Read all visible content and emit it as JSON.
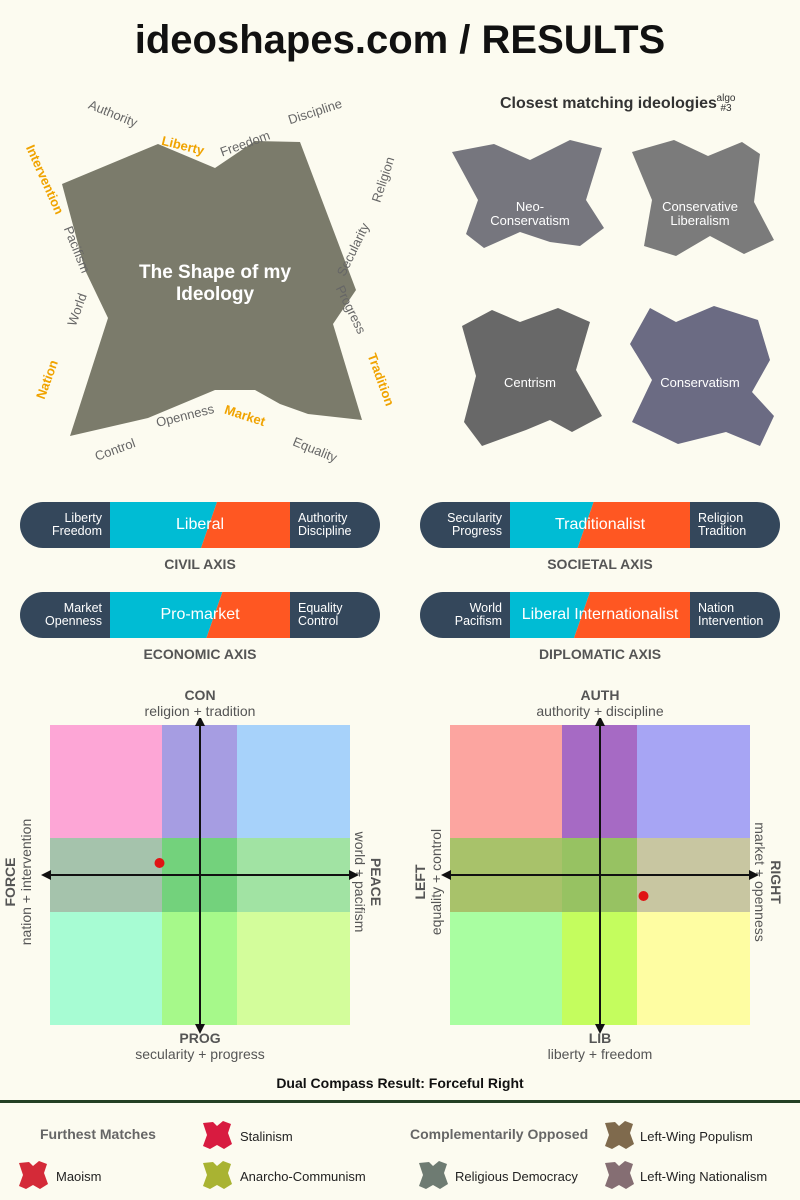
{
  "title": "ideoshapes.com / RESULTS",
  "shape": {
    "title_line1": "The Shape of my",
    "title_line2": "Ideology",
    "labels": {
      "authority": "Authority",
      "liberty": "Liberty",
      "freedom": "Freedom",
      "discipline": "Discipline",
      "intervention": "Intervention",
      "religion": "Religion",
      "pacifism": "Pacifism",
      "secularity": "Secularity",
      "world": "World",
      "progress": "Progress",
      "nation": "Nation",
      "tradition": "Tradition",
      "openness": "Openness",
      "market": "Market",
      "control": "Control",
      "equality": "Equality"
    },
    "colors": {
      "shape": "#7b7b6b",
      "highlight": "#f0a300"
    }
  },
  "closest": {
    "heading": "Closest matching ideologies",
    "algo_line1": "algo",
    "algo_line2": "#3",
    "items": [
      {
        "line1": "Neo-",
        "line2": "Conservatism",
        "color": "#76767e"
      },
      {
        "line1": "Conservative",
        "line2": "Liberalism",
        "color": "#7b7b7b"
      },
      {
        "line1": "Centrism",
        "line2": "",
        "color": "#686868"
      },
      {
        "line1": "Conservatism",
        "line2": "",
        "color": "#6b6b83"
      }
    ]
  },
  "axes": {
    "colors": {
      "end": "#34475b",
      "cyan": "#00bcd4",
      "orange": "#ff5722"
    },
    "civil": {
      "left1": "Liberty",
      "left2": "Freedom",
      "result": "Liberal",
      "right1": "Authority",
      "right2": "Discipline",
      "name": "CIVIL AXIS",
      "split": 0.55
    },
    "societal": {
      "left1": "Secularity",
      "left2": "Progress",
      "result": "Traditionalist",
      "right1": "Religion",
      "right2": "Tradition",
      "name": "SOCIETAL AXIS",
      "split": 0.42
    },
    "economic": {
      "left1": "Market",
      "left2": "Openness",
      "result": "Pro-market",
      "right1": "Equality",
      "right2": "Control",
      "name": "ECONOMIC AXIS",
      "split": 0.58
    },
    "diplomatic": {
      "left1": "World",
      "left2": "Pacifism",
      "result": "Liberal Internationalist",
      "right1": "Nation",
      "right2": "Intervention",
      "name": "DIPLOMATIC AXIS",
      "split": 0.4
    }
  },
  "compass1": {
    "top_head": "CON",
    "top_sub": "religion + tradition",
    "bottom_head": "PROG",
    "bottom_sub": "secularity + progress",
    "left_head": "FORCE",
    "left_sub": "nation + intervention",
    "right_head": "PEACE",
    "right_sub": "world + pacifism",
    "point_x": -0.27,
    "point_y": 0.08,
    "cells": [
      "#fda6d6",
      "#a69de2",
      "#a7d2fa",
      "#a5c3ac",
      "#73d27c",
      "#a1e3a3",
      "#a7fcd3",
      "#a6f98a",
      "#d3fd9b"
    ]
  },
  "compass2": {
    "top_head": "AUTH",
    "top_sub": "authority + discipline",
    "bottom_head": "LIB",
    "bottom_sub": "liberty + freedom",
    "left_head": "LEFT",
    "left_sub": "equality + control",
    "right_head": "RIGHT",
    "right_sub": "market + openness",
    "point_x": 0.29,
    "point_y": -0.14,
    "cells": [
      "#fca5a0",
      "#a66ac4",
      "#a7a5f4",
      "#a8c26a",
      "#97c262",
      "#c8c6a1",
      "#a9fea1",
      "#c4fd5e",
      "#fefda2"
    ]
  },
  "dual_result": "Dual Compass Result: Forceful Right",
  "footer": {
    "furthest_heading": "Furthest Matches",
    "opposed_heading": "Complementarily Opposed",
    "items": [
      {
        "label": "Stalinism",
        "color": "#d81b40"
      },
      {
        "label": "Maoism",
        "color": "#d42a38"
      },
      {
        "label": "Anarcho-Communism",
        "color": "#a9b332"
      },
      {
        "label": "Left-Wing Populism",
        "color": "#7f6a4d"
      },
      {
        "label": "Religious Democracy",
        "color": "#6e7b72"
      },
      {
        "label": "Left-Wing Nationalism",
        "color": "#856e73"
      }
    ]
  }
}
